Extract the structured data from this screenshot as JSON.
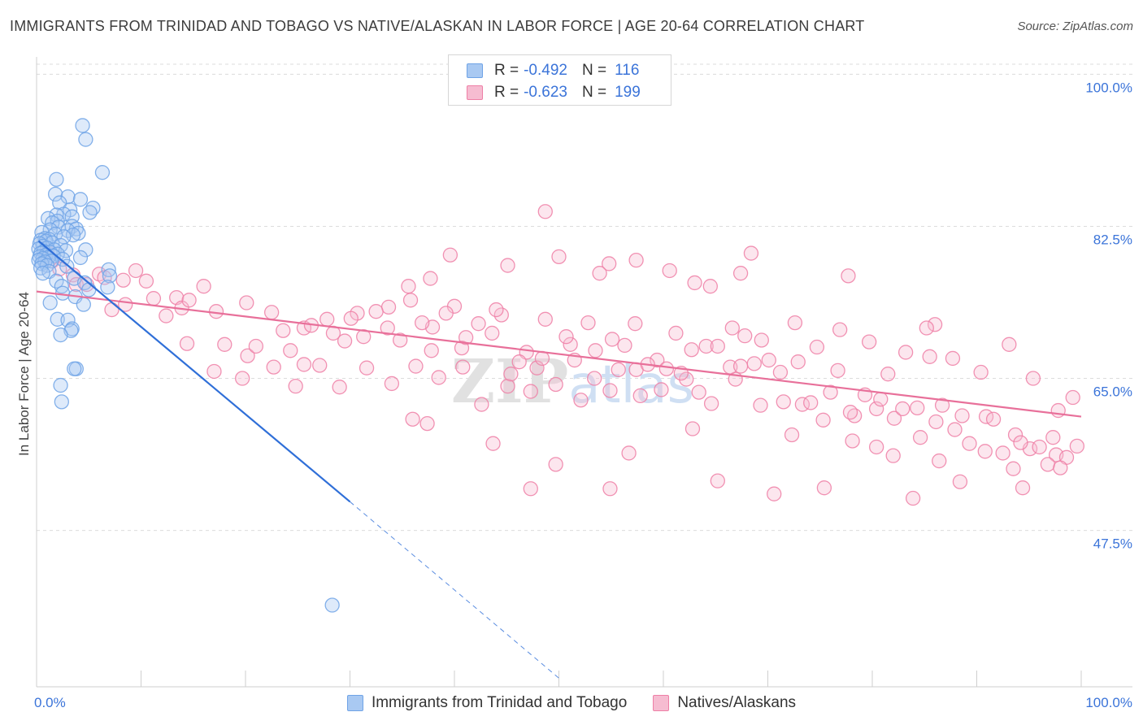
{
  "title": "IMMIGRANTS FROM TRINIDAD AND TOBAGO VS NATIVE/ALASKAN IN LABOR FORCE | AGE 20-64 CORRELATION CHART",
  "source": "Source: ZipAtlas.com",
  "watermark": "ZIPatlas",
  "colors": {
    "blue": "#6fa3e6",
    "blue_fill": "#a9c9f2",
    "blue_line": "#2f6fd8",
    "pink": "#ee7fa6",
    "pink_fill": "#f6bcd1",
    "pink_line": "#e8709a",
    "axis_text": "#3b74d9",
    "grid": "#dcdcdc"
  },
  "legend_top": {
    "rows": [
      {
        "r_label": "R =",
        "r_value": "-0.492",
        "n_label": "N =",
        "n_value": "116"
      },
      {
        "r_label": "R =",
        "r_value": "-0.623",
        "n_label": "N =",
        "n_value": "199"
      }
    ]
  },
  "legend_bottom": {
    "blue_label": "Immigrants from Trinidad and Tobago",
    "pink_label": "Natives/Alaskans"
  },
  "chart_data": {
    "type": "scatter",
    "title": "IMMIGRANTS FROM TRINIDAD AND TOBAGO VS NATIVE/ALASKAN IN LABOR FORCE | AGE 20-64 CORRELATION CHART",
    "xlabel": "",
    "ylabel": "In Labor Force | Age 20-64",
    "xlim": [
      0,
      100
    ],
    "ylim": [
      29.5,
      102
    ],
    "x_tick_labels": [
      "0.0%",
      "100.0%"
    ],
    "y_ticks": [
      100.0,
      82.5,
      65.0,
      47.5
    ],
    "y_tick_labels": [
      "100.0%",
      "82.5%",
      "65.0%",
      "47.5%"
    ],
    "grid": true,
    "series": [
      {
        "name": "Immigrants from Trinidad and Tobago",
        "color": "blue",
        "R": -0.492,
        "N": 116,
        "trend": {
          "x0": 0.2,
          "y0": 80.8,
          "x1": 30.0,
          "y1": 50.8,
          "dash_x1": 50.0,
          "dash_y1": 30.5
        },
        "points": [
          [
            4.4,
            94.1
          ],
          [
            4.7,
            92.5
          ],
          [
            6.3,
            88.7
          ],
          [
            1.9,
            87.9
          ],
          [
            1.8,
            86.2
          ],
          [
            3.0,
            85.9
          ],
          [
            4.2,
            85.6
          ],
          [
            2.2,
            85.2
          ],
          [
            5.4,
            84.6
          ],
          [
            3.2,
            84.4
          ],
          [
            5.1,
            84.1
          ],
          [
            2.6,
            83.9
          ],
          [
            1.9,
            83.8
          ],
          [
            3.4,
            83.6
          ],
          [
            1.1,
            83.4
          ],
          [
            2.0,
            83.1
          ],
          [
            1.5,
            82.9
          ],
          [
            3.4,
            82.5
          ],
          [
            2.1,
            82.4
          ],
          [
            3.8,
            82.2
          ],
          [
            1.3,
            82.1
          ],
          [
            3.0,
            82.0
          ],
          [
            4.0,
            81.7
          ],
          [
            0.5,
            81.8
          ],
          [
            1.8,
            81.6
          ],
          [
            3.5,
            81.5
          ],
          [
            2.6,
            81.3
          ],
          [
            0.8,
            81.1
          ],
          [
            1.2,
            81.0
          ],
          [
            0.4,
            80.9
          ],
          [
            0.9,
            80.8
          ],
          [
            1.5,
            80.6
          ],
          [
            0.3,
            80.5
          ],
          [
            2.3,
            80.3
          ],
          [
            0.6,
            80.2
          ],
          [
            1.0,
            80.0
          ],
          [
            0.2,
            79.9
          ],
          [
            1.7,
            79.8
          ],
          [
            4.7,
            79.8
          ],
          [
            2.8,
            79.7
          ],
          [
            0.7,
            79.6
          ],
          [
            1.3,
            79.5
          ],
          [
            0.4,
            79.4
          ],
          [
            2.0,
            79.3
          ],
          [
            0.9,
            79.2
          ],
          [
            1.6,
            79.1
          ],
          [
            0.3,
            79.0
          ],
          [
            1.1,
            78.9
          ],
          [
            4.2,
            78.9
          ],
          [
            0.6,
            78.8
          ],
          [
            2.5,
            78.7
          ],
          [
            0.2,
            78.6
          ],
          [
            1.4,
            78.5
          ],
          [
            0.8,
            78.4
          ],
          [
            0.5,
            78.2
          ],
          [
            1.0,
            78.0
          ],
          [
            2.9,
            77.9
          ],
          [
            0.4,
            77.7
          ],
          [
            6.9,
            77.5
          ],
          [
            1.2,
            77.3
          ],
          [
            0.6,
            77.1
          ],
          [
            7.0,
            76.8
          ],
          [
            3.6,
            76.5
          ],
          [
            1.9,
            76.2
          ],
          [
            4.6,
            76.0
          ],
          [
            2.4,
            75.6
          ],
          [
            6.8,
            75.5
          ],
          [
            5.0,
            75.2
          ],
          [
            2.5,
            74.8
          ],
          [
            3.7,
            74.4
          ],
          [
            1.3,
            73.7
          ],
          [
            4.5,
            73.5
          ],
          [
            2.0,
            71.8
          ],
          [
            3.0,
            71.7
          ],
          [
            3.4,
            70.7
          ],
          [
            3.3,
            70.5
          ],
          [
            2.3,
            70.0
          ],
          [
            3.8,
            66.1
          ],
          [
            3.6,
            66.1
          ],
          [
            2.3,
            64.2
          ],
          [
            2.4,
            62.3
          ],
          [
            28.3,
            38.9
          ]
        ]
      },
      {
        "name": "Natives/Alaskans",
        "color": "pink",
        "R": -0.623,
        "N": 199,
        "trend": {
          "x0": 0.0,
          "y0": 75.0,
          "x1": 100.0,
          "y1": 60.6
        },
        "points": [
          [
            1.0,
            79.5
          ],
          [
            1.5,
            78.5
          ],
          [
            2.2,
            77.6
          ],
          [
            3.5,
            76.9
          ],
          [
            6.0,
            77.0
          ],
          [
            6.5,
            76.6
          ],
          [
            3.8,
            75.8
          ],
          [
            4.8,
            75.8
          ],
          [
            8.3,
            76.3
          ],
          [
            9.5,
            77.4
          ],
          [
            10.5,
            76.2
          ],
          [
            11.2,
            74.2
          ],
          [
            13.4,
            74.3
          ],
          [
            13.9,
            73.1
          ],
          [
            16.0,
            75.6
          ],
          [
            17.2,
            72.7
          ],
          [
            20.1,
            73.7
          ],
          [
            22.5,
            72.6
          ],
          [
            7.2,
            72.9
          ],
          [
            8.5,
            73.5
          ],
          [
            14.6,
            74.0
          ],
          [
            12.4,
            72.2
          ],
          [
            25.6,
            70.8
          ],
          [
            28.4,
            70.2
          ],
          [
            30.7,
            72.5
          ],
          [
            33.7,
            73.2
          ],
          [
            35.6,
            75.6
          ],
          [
            37.9,
            70.9
          ],
          [
            40.0,
            73.3
          ],
          [
            42.3,
            71.3
          ],
          [
            44.5,
            72.3
          ],
          [
            46.9,
            68.0
          ],
          [
            48.7,
            71.8
          ],
          [
            51.1,
            68.9
          ],
          [
            53.5,
            68.2
          ],
          [
            55.1,
            69.5
          ],
          [
            57.3,
            71.3
          ],
          [
            59.4,
            67.1
          ],
          [
            61.2,
            70.2
          ],
          [
            62.7,
            68.3
          ],
          [
            64.1,
            68.7
          ],
          [
            66.6,
            70.8
          ],
          [
            67.8,
            69.9
          ],
          [
            69.4,
            69.4
          ],
          [
            72.6,
            71.4
          ],
          [
            74.7,
            68.6
          ],
          [
            76.9,
            70.6
          ],
          [
            79.7,
            69.2
          ],
          [
            81.5,
            65.5
          ],
          [
            83.2,
            68.0
          ],
          [
            85.5,
            67.5
          ],
          [
            87.7,
            67.3
          ],
          [
            90.4,
            65.7
          ],
          [
            93.1,
            68.9
          ],
          [
            95.4,
            65.0
          ],
          [
            97.8,
            61.3
          ],
          [
            99.2,
            62.8
          ],
          [
            14.4,
            69.0
          ],
          [
            17.0,
            65.8
          ],
          [
            19.7,
            65.0
          ],
          [
            22.7,
            66.3
          ],
          [
            24.8,
            64.1
          ],
          [
            27.1,
            66.5
          ],
          [
            29.0,
            64.0
          ],
          [
            31.6,
            66.2
          ],
          [
            34.0,
            64.4
          ],
          [
            36.3,
            66.4
          ],
          [
            38.5,
            65.1
          ],
          [
            40.8,
            66.3
          ],
          [
            42.6,
            62.0
          ],
          [
            45.1,
            64.1
          ],
          [
            47.3,
            63.5
          ],
          [
            49.7,
            64.3
          ],
          [
            52.1,
            62.5
          ],
          [
            54.9,
            63.6
          ],
          [
            57.4,
            66.0
          ],
          [
            59.8,
            63.7
          ],
          [
            62.2,
            64.9
          ],
          [
            64.6,
            62.1
          ],
          [
            66.9,
            64.9
          ],
          [
            69.3,
            61.9
          ],
          [
            71.5,
            62.3
          ],
          [
            73.3,
            62.0
          ],
          [
            76.0,
            63.4
          ],
          [
            78.3,
            60.7
          ],
          [
            80.4,
            61.5
          ],
          [
            82.1,
            60.4
          ],
          [
            84.3,
            61.6
          ],
          [
            86.7,
            61.9
          ],
          [
            88.6,
            60.7
          ],
          [
            90.9,
            60.6
          ],
          [
            93.7,
            58.5
          ],
          [
            95.1,
            56.9
          ],
          [
            97.3,
            58.2
          ],
          [
            99.6,
            57.2
          ],
          [
            23.6,
            70.5
          ],
          [
            26.3,
            71.1
          ],
          [
            27.8,
            71.8
          ],
          [
            29.5,
            69.3
          ],
          [
            30.1,
            71.9
          ],
          [
            31.3,
            69.8
          ],
          [
            32.5,
            72.7
          ],
          [
            33.6,
            70.8
          ],
          [
            34.8,
            69.4
          ],
          [
            35.8,
            74.0
          ],
          [
            36.9,
            71.4
          ],
          [
            37.8,
            68.2
          ],
          [
            39.2,
            72.5
          ],
          [
            40.7,
            68.5
          ],
          [
            41.1,
            69.7
          ],
          [
            43.6,
            70.2
          ],
          [
            44.0,
            72.9
          ],
          [
            45.4,
            65.5
          ],
          [
            46.2,
            66.9
          ],
          [
            47.9,
            66.2
          ],
          [
            48.4,
            67.3
          ],
          [
            50.7,
            69.8
          ],
          [
            51.5,
            67.1
          ],
          [
            52.8,
            71.4
          ],
          [
            53.4,
            65.0
          ],
          [
            55.7,
            66.0
          ],
          [
            56.3,
            68.8
          ],
          [
            57.8,
            63.0
          ],
          [
            58.5,
            66.6
          ],
          [
            60.3,
            66.1
          ],
          [
            61.7,
            65.6
          ],
          [
            63.4,
            63.4
          ],
          [
            65.2,
            68.7
          ],
          [
            66.4,
            66.3
          ],
          [
            67.4,
            66.4
          ],
          [
            68.7,
            66.7
          ],
          [
            70.1,
            67.1
          ],
          [
            71.2,
            65.7
          ],
          [
            72.9,
            66.9
          ],
          [
            74.1,
            62.2
          ],
          [
            75.3,
            60.2
          ],
          [
            76.7,
            65.9
          ],
          [
            77.9,
            61.1
          ],
          [
            79.3,
            63.1
          ],
          [
            80.8,
            62.6
          ],
          [
            82.9,
            61.5
          ],
          [
            84.6,
            58.2
          ],
          [
            86.1,
            60.0
          ],
          [
            87.9,
            59.1
          ],
          [
            89.3,
            57.5
          ],
          [
            91.6,
            60.3
          ],
          [
            92.5,
            56.4
          ],
          [
            94.2,
            57.6
          ],
          [
            96.0,
            57.1
          ],
          [
            97.6,
            56.2
          ],
          [
            98.6,
            55.9
          ],
          [
            36.0,
            60.3
          ],
          [
            37.4,
            59.8
          ],
          [
            43.7,
            57.5
          ],
          [
            47.3,
            52.3
          ],
          [
            49.7,
            55.1
          ],
          [
            54.9,
            52.3
          ],
          [
            56.7,
            56.4
          ],
          [
            62.8,
            59.2
          ],
          [
            65.2,
            53.2
          ],
          [
            70.6,
            51.7
          ],
          [
            72.3,
            58.5
          ],
          [
            75.4,
            52.4
          ],
          [
            78.1,
            57.8
          ],
          [
            80.4,
            57.1
          ],
          [
            82.0,
            56.1
          ],
          [
            83.9,
            51.2
          ],
          [
            86.4,
            55.5
          ],
          [
            88.4,
            53.1
          ],
          [
            90.8,
            56.6
          ],
          [
            93.5,
            54.6
          ],
          [
            94.4,
            52.4
          ],
          [
            96.8,
            55.1
          ],
          [
            98.0,
            54.7
          ],
          [
            48.7,
            84.2
          ],
          [
            57.4,
            78.6
          ],
          [
            68.4,
            79.4
          ],
          [
            50.0,
            79.0
          ],
          [
            54.8,
            78.2
          ],
          [
            45.1,
            78.0
          ],
          [
            39.6,
            79.2
          ],
          [
            37.7,
            76.5
          ],
          [
            60.6,
            77.4
          ],
          [
            64.5,
            75.6
          ],
          [
            67.4,
            77.1
          ],
          [
            63.0,
            76.0
          ],
          [
            53.9,
            77.1
          ],
          [
            77.7,
            76.8
          ],
          [
            86.0,
            71.2
          ],
          [
            85.2,
            70.8
          ],
          [
            18.0,
            68.9
          ],
          [
            20.2,
            67.6
          ],
          [
            21.0,
            68.7
          ],
          [
            24.3,
            68.2
          ],
          [
            25.6,
            66.6
          ]
        ]
      }
    ]
  }
}
